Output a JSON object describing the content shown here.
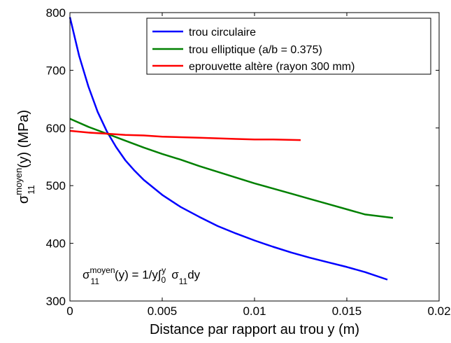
{
  "chart_data": {
    "type": "line",
    "title": "",
    "xlabel": "Distance par rapport au trou y (m)",
    "ylabel": {
      "main": "σ",
      "sup": "moyen",
      "sub": "11",
      "rest": "(y) (MPa)"
    },
    "xlim": [
      0,
      0.02
    ],
    "ylim": [
      300,
      800
    ],
    "xticks": [
      0,
      0.005,
      0.01,
      0.015,
      0.02
    ],
    "xtick_labels": [
      "0",
      "0.005",
      "0.01",
      "0.015",
      "0.02"
    ],
    "yticks": [
      300,
      400,
      500,
      600,
      700,
      800
    ],
    "ytick_labels": [
      "300",
      "400",
      "500",
      "600",
      "700",
      "800"
    ],
    "grid": false,
    "legend_position": "top-right",
    "series": [
      {
        "name": "trou circulaire",
        "color": "#0000ff",
        "x": [
          0,
          0.0005,
          0.001,
          0.0015,
          0.002,
          0.0025,
          0.003,
          0.0035,
          0.004,
          0.005,
          0.006,
          0.007,
          0.008,
          0.009,
          0.01,
          0.011,
          0.012,
          0.013,
          0.014,
          0.015,
          0.016,
          0.0172
        ],
        "y": [
          792,
          725,
          672,
          628,
          594,
          567,
          544,
          526,
          510,
          484,
          463,
          446,
          430,
          417,
          405,
          394,
          384,
          375,
          367,
          359,
          350,
          337
        ]
      },
      {
        "name": "trou elliptique (a/b = 0.375)",
        "color": "#008000",
        "x": [
          0,
          0.001,
          0.002,
          0.003,
          0.004,
          0.005,
          0.006,
          0.007,
          0.008,
          0.009,
          0.01,
          0.011,
          0.012,
          0.013,
          0.014,
          0.015,
          0.016,
          0.0175
        ],
        "y": [
          616,
          602,
          590,
          578,
          566,
          555,
          545,
          534,
          524,
          514,
          504,
          495,
          486,
          477,
          468,
          459,
          450,
          444
        ]
      },
      {
        "name": "eprouvette altère (rayon 300 mm)",
        "color": "#ff0000",
        "x": [
          0,
          0.001,
          0.002,
          0.003,
          0.004,
          0.005,
          0.006,
          0.007,
          0.008,
          0.009,
          0.01,
          0.011,
          0.0125
        ],
        "y": [
          595,
          592,
          590,
          588,
          587,
          585,
          584,
          583,
          582,
          581,
          580,
          580,
          579
        ]
      }
    ],
    "annotation": {
      "sigma": "σ",
      "sup": "moyen",
      "sub": "11",
      "eq": "(y) = 1/y∫",
      "int_sub": "0",
      "int_sup": "y",
      "sigma2": "σ",
      "sub2": "11",
      "tail": "dy"
    }
  }
}
